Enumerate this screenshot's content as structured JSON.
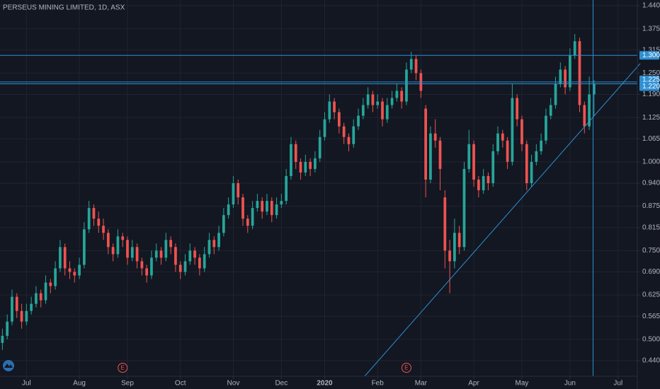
{
  "chart_data": {
    "type": "candlestick",
    "title": "PERSEUS MINING LIMITED, 1D, ASX",
    "up_color": "#26a69a",
    "down_color": "#ef5350",
    "grid": true,
    "line_color": "#2f8fd1",
    "xlim": [
      -0.5,
      132
    ],
    "ylim": [
      0.396,
      1.456
    ],
    "yticks": [
      {
        "value": 1.44,
        "label": "1.440"
      },
      1.375,
      1.315,
      {
        "value": 1.25,
        "label": "1.250"
      },
      {
        "value": 1.19,
        "label": "1.190"
      },
      1.125,
      1.065,
      {
        "value": 1.0,
        "label": "1.000"
      },
      {
        "value": 0.94,
        "label": "0.940"
      },
      0.875,
      0.815,
      {
        "value": 0.75,
        "label": "0.750"
      },
      {
        "value": 0.69,
        "label": "0.690"
      },
      0.625,
      0.565,
      {
        "value": 0.5,
        "label": "0.500"
      },
      {
        "value": 0.44,
        "label": "0.440"
      }
    ],
    "xticks": [
      {
        "value": 5,
        "label": "Jul"
      },
      {
        "value": 16,
        "label": "Aug"
      },
      {
        "value": 26,
        "label": "Sep"
      },
      {
        "value": 37,
        "label": "Oct"
      },
      {
        "value": 48,
        "label": "Nov"
      },
      {
        "value": 58,
        "label": "Dec"
      },
      {
        "value": 67,
        "label": "2020"
      },
      {
        "value": 78,
        "label": "Feb"
      },
      {
        "value": 87,
        "label": "Mar"
      },
      {
        "value": 98,
        "label": "Apr"
      },
      {
        "value": 108,
        "label": "May"
      },
      {
        "value": 118,
        "label": "Jun"
      },
      {
        "value": 128,
        "label": "Jul"
      }
    ],
    "hlines": [
      {
        "value": 1.3,
        "label": "1.300"
      },
      {
        "value": 1.225,
        "label": "1.225"
      },
      {
        "value": 1.22,
        "label": "1.220"
      }
    ],
    "trendline": {
      "x": [
        75.3,
        132.6
      ],
      "y": [
        0.396,
        1.277
      ]
    },
    "vline": 122.8,
    "events": [
      {
        "index": 25,
        "label": "E"
      },
      {
        "index": 84,
        "label": "E"
      }
    ],
    "candles": [
      [
        0.49,
        0.53,
        0.47,
        0.51
      ],
      [
        0.51,
        0.57,
        0.5,
        0.55
      ],
      [
        0.55,
        0.64,
        0.54,
        0.62
      ],
      [
        0.62,
        0.63,
        0.56,
        0.58
      ],
      [
        0.58,
        0.6,
        0.53,
        0.55
      ],
      [
        0.55,
        0.6,
        0.54,
        0.58
      ],
      [
        0.58,
        0.62,
        0.57,
        0.6
      ],
      [
        0.6,
        0.65,
        0.59,
        0.63
      ],
      [
        0.63,
        0.64,
        0.59,
        0.61
      ],
      [
        0.61,
        0.68,
        0.6,
        0.66
      ],
      [
        0.66,
        0.67,
        0.63,
        0.65
      ],
      [
        0.65,
        0.72,
        0.64,
        0.7
      ],
      [
        0.7,
        0.78,
        0.69,
        0.76
      ],
      [
        0.76,
        0.77,
        0.68,
        0.7
      ],
      [
        0.7,
        0.72,
        0.67,
        0.69
      ],
      [
        0.69,
        0.7,
        0.66,
        0.68
      ],
      [
        0.68,
        0.73,
        0.67,
        0.71
      ],
      [
        0.71,
        0.83,
        0.7,
        0.81
      ],
      [
        0.81,
        0.89,
        0.8,
        0.87
      ],
      [
        0.87,
        0.88,
        0.82,
        0.84
      ],
      [
        0.84,
        0.86,
        0.8,
        0.82
      ],
      [
        0.82,
        0.84,
        0.78,
        0.8
      ],
      [
        0.8,
        0.81,
        0.74,
        0.76
      ],
      [
        0.76,
        0.77,
        0.72,
        0.74
      ],
      [
        0.74,
        0.81,
        0.73,
        0.79
      ],
      [
        0.79,
        0.8,
        0.76,
        0.78
      ],
      [
        0.78,
        0.79,
        0.71,
        0.73
      ],
      [
        0.73,
        0.78,
        0.72,
        0.76
      ],
      [
        0.76,
        0.77,
        0.7,
        0.72
      ],
      [
        0.72,
        0.73,
        0.68,
        0.7
      ],
      [
        0.7,
        0.71,
        0.66,
        0.68
      ],
      [
        0.68,
        0.75,
        0.67,
        0.73
      ],
      [
        0.73,
        0.77,
        0.72,
        0.75
      ],
      [
        0.75,
        0.76,
        0.71,
        0.73
      ],
      [
        0.73,
        0.8,
        0.72,
        0.78
      ],
      [
        0.78,
        0.79,
        0.74,
        0.76
      ],
      [
        0.76,
        0.77,
        0.69,
        0.71
      ],
      [
        0.71,
        0.72,
        0.67,
        0.69
      ],
      [
        0.69,
        0.74,
        0.68,
        0.72
      ],
      [
        0.72,
        0.77,
        0.71,
        0.75
      ],
      [
        0.75,
        0.76,
        0.71,
        0.73
      ],
      [
        0.73,
        0.74,
        0.68,
        0.7
      ],
      [
        0.7,
        0.76,
        0.69,
        0.74
      ],
      [
        0.74,
        0.8,
        0.73,
        0.78
      ],
      [
        0.78,
        0.79,
        0.74,
        0.76
      ],
      [
        0.76,
        0.82,
        0.75,
        0.8
      ],
      [
        0.8,
        0.87,
        0.79,
        0.85
      ],
      [
        0.85,
        0.9,
        0.84,
        0.88
      ],
      [
        0.88,
        0.96,
        0.87,
        0.94
      ],
      [
        0.94,
        0.95,
        0.88,
        0.9
      ],
      [
        0.9,
        0.91,
        0.82,
        0.84
      ],
      [
        0.84,
        0.85,
        0.8,
        0.82
      ],
      [
        0.82,
        0.89,
        0.81,
        0.87
      ],
      [
        0.87,
        0.91,
        0.86,
        0.89
      ],
      [
        0.89,
        0.9,
        0.84,
        0.86
      ],
      [
        0.86,
        0.91,
        0.85,
        0.89
      ],
      [
        0.89,
        0.9,
        0.83,
        0.85
      ],
      [
        0.85,
        0.9,
        0.84,
        0.88
      ],
      [
        0.88,
        0.91,
        0.87,
        0.89
      ],
      [
        0.89,
        0.98,
        0.88,
        0.96
      ],
      [
        0.96,
        1.07,
        0.95,
        1.05
      ],
      [
        1.05,
        1.06,
        0.98,
        1.0
      ],
      [
        1.0,
        1.01,
        0.95,
        0.97
      ],
      [
        0.97,
        1.02,
        0.96,
        1.0
      ],
      [
        1.0,
        1.01,
        0.96,
        0.98
      ],
      [
        0.98,
        1.03,
        0.97,
        1.01
      ],
      [
        1.01,
        1.09,
        1.0,
        1.07
      ],
      [
        1.07,
        1.14,
        1.06,
        1.12
      ],
      [
        1.12,
        1.19,
        1.11,
        1.17
      ],
      [
        1.17,
        1.18,
        1.12,
        1.14
      ],
      [
        1.14,
        1.15,
        1.08,
        1.1
      ],
      [
        1.1,
        1.11,
        1.05,
        1.07
      ],
      [
        1.07,
        1.08,
        1.03,
        1.05
      ],
      [
        1.05,
        1.12,
        1.04,
        1.1
      ],
      [
        1.1,
        1.15,
        1.09,
        1.13
      ],
      [
        1.13,
        1.18,
        1.12,
        1.16
      ],
      [
        1.16,
        1.21,
        1.15,
        1.19
      ],
      [
        1.19,
        1.2,
        1.14,
        1.16
      ],
      [
        1.16,
        1.19,
        1.15,
        1.17
      ],
      [
        1.17,
        1.18,
        1.1,
        1.12
      ],
      [
        1.12,
        1.18,
        1.11,
        1.16
      ],
      [
        1.16,
        1.2,
        1.15,
        1.18
      ],
      [
        1.18,
        1.22,
        1.17,
        1.2
      ],
      [
        1.2,
        1.21,
        1.15,
        1.17
      ],
      [
        1.17,
        1.28,
        1.16,
        1.26
      ],
      [
        1.26,
        1.31,
        1.25,
        1.29
      ],
      [
        1.29,
        1.3,
        1.23,
        1.25
      ],
      [
        1.25,
        1.26,
        1.18,
        1.2
      ],
      [
        1.15,
        1.16,
        0.9,
        0.95
      ],
      [
        0.95,
        1.1,
        0.94,
        1.08
      ],
      [
        1.08,
        1.12,
        1.04,
        1.06
      ],
      [
        1.06,
        1.07,
        0.92,
        0.98
      ],
      [
        0.9,
        0.92,
        0.7,
        0.75
      ],
      [
        0.75,
        0.78,
        0.63,
        0.72
      ],
      [
        0.72,
        0.84,
        0.7,
        0.8
      ],
      [
        0.8,
        0.82,
        0.74,
        0.76
      ],
      [
        0.76,
        1.0,
        0.75,
        0.98
      ],
      [
        0.98,
        1.09,
        0.97,
        1.05
      ],
      [
        1.05,
        1.06,
        0.93,
        0.95
      ],
      [
        0.95,
        0.96,
        0.9,
        0.92
      ],
      [
        0.92,
        0.98,
        0.91,
        0.96
      ],
      [
        0.96,
        0.97,
        0.92,
        0.94
      ],
      [
        0.94,
        1.05,
        0.93,
        1.03
      ],
      [
        1.03,
        1.1,
        1.02,
        1.08
      ],
      [
        1.08,
        1.09,
        1.04,
        1.06
      ],
      [
        1.06,
        1.07,
        0.98,
        1.0
      ],
      [
        1.0,
        1.22,
        0.99,
        1.18
      ],
      [
        1.18,
        1.19,
        1.1,
        1.12
      ],
      [
        1.12,
        1.13,
        1.03,
        1.05
      ],
      [
        1.05,
        1.06,
        0.92,
        0.94
      ],
      [
        0.94,
        1.02,
        0.93,
        1.0
      ],
      [
        1.0,
        1.05,
        0.99,
        1.03
      ],
      [
        1.03,
        1.08,
        1.02,
        1.06
      ],
      [
        1.06,
        1.15,
        1.05,
        1.13
      ],
      [
        1.13,
        1.18,
        1.12,
        1.16
      ],
      [
        1.16,
        1.24,
        1.15,
        1.22
      ],
      [
        1.22,
        1.28,
        1.21,
        1.26
      ],
      [
        1.26,
        1.27,
        1.19,
        1.21
      ],
      [
        1.21,
        1.32,
        1.2,
        1.3
      ],
      [
        1.3,
        1.36,
        1.29,
        1.34
      ],
      [
        1.34,
        1.35,
        1.14,
        1.16
      ],
      [
        1.16,
        1.17,
        1.08,
        1.1
      ],
      [
        1.1,
        1.24,
        1.09,
        1.19
      ],
      [
        1.19,
        1.23,
        1.13,
        1.22
      ]
    ]
  }
}
